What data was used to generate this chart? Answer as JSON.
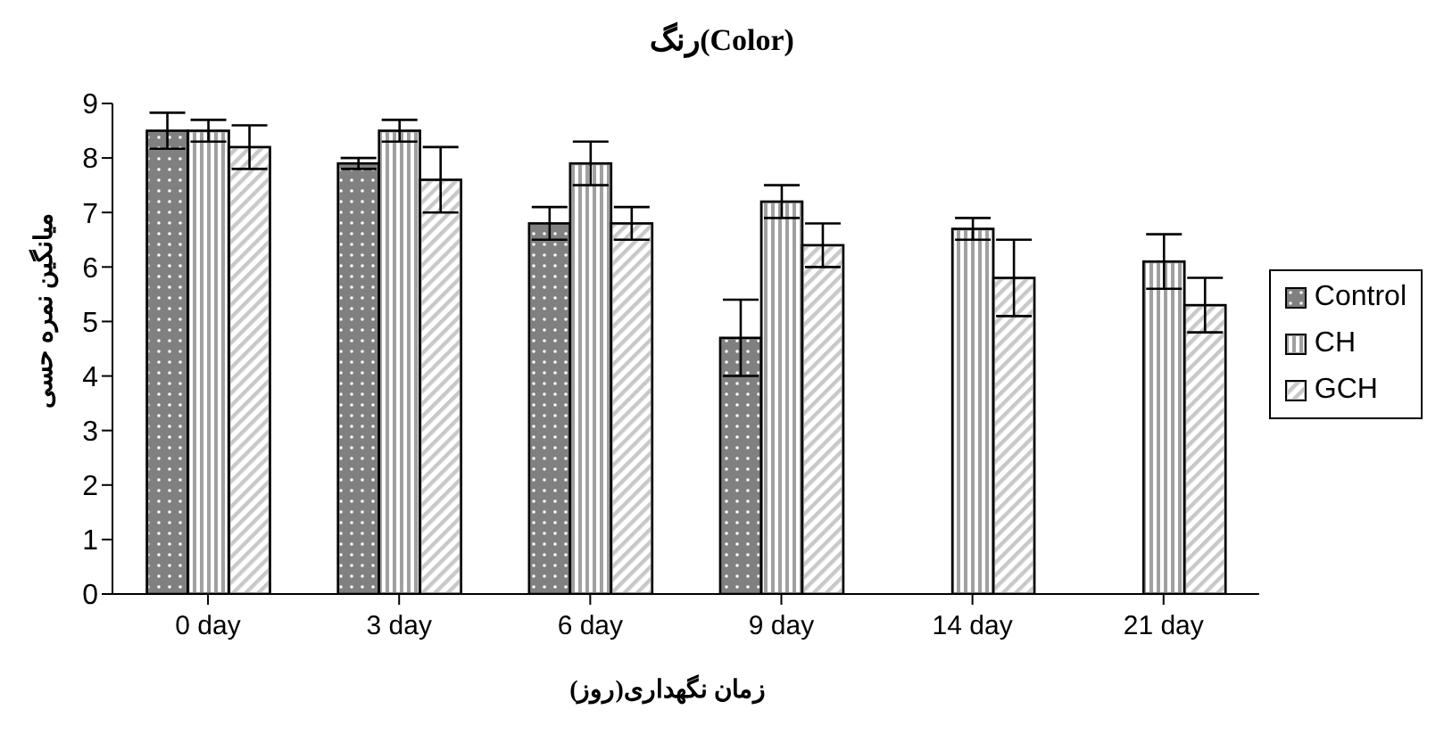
{
  "chart_data": {
    "type": "bar",
    "title": "رنگ(Color)",
    "xlabel": "زمان نگهداری(روز)",
    "ylabel": "میانگین نمره حسی",
    "categories": [
      "0 day",
      "3 day",
      "6 day",
      "9 day",
      "14 day",
      "21 day"
    ],
    "series": [
      {
        "name": "Control",
        "color": "#808080",
        "values": [
          8.5,
          7.9,
          6.8,
          4.7,
          null,
          null
        ],
        "errors": [
          0.33,
          0.1,
          0.3,
          0.7,
          null,
          null
        ]
      },
      {
        "name": "CH",
        "color": "#a0a0a0",
        "values": [
          8.5,
          8.5,
          7.9,
          7.2,
          6.7,
          6.1
        ],
        "errors": [
          0.2,
          0.2,
          0.4,
          0.3,
          0.2,
          0.5
        ]
      },
      {
        "name": "GCH",
        "color": "#c8c8c8",
        "values": [
          8.2,
          7.6,
          6.8,
          6.4,
          5.8,
          5.3
        ],
        "errors": [
          0.4,
          0.6,
          0.3,
          0.4,
          0.7,
          0.5
        ]
      }
    ],
    "ylim": [
      0,
      9
    ],
    "yticks": [
      0,
      1,
      2,
      3,
      4,
      5,
      6,
      7,
      8,
      9
    ],
    "grid": false,
    "legend": "right"
  }
}
